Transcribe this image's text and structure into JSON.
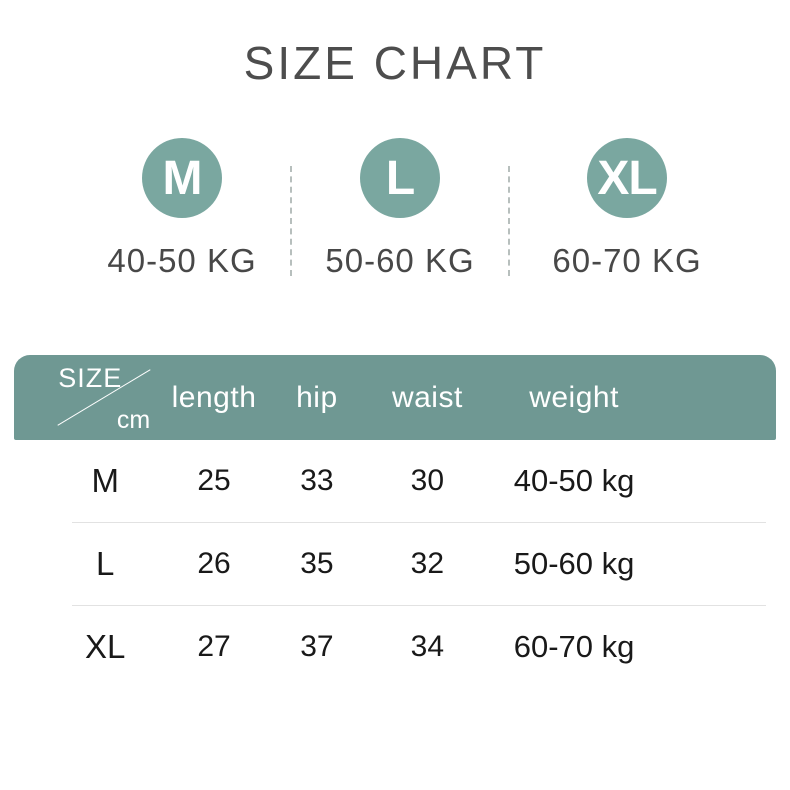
{
  "title": "SIZE CHART",
  "colors": {
    "badge_teal": "#7aa7a0",
    "header_teal": "#6f9893",
    "title_gray": "#4d4d4d",
    "body_text": "#191919"
  },
  "size_legend": [
    {
      "label": "M",
      "weight": "40-50 KG"
    },
    {
      "label": "L",
      "weight": "50-60 KG"
    },
    {
      "label": "XL",
      "weight": "60-70 KG"
    }
  ],
  "table": {
    "corner_top": "SIZE",
    "corner_bottom": "cm",
    "headers": {
      "length": "length",
      "hip": "hip",
      "waist": "waist",
      "weight": "weight"
    },
    "rows": [
      {
        "size": "M",
        "length": "25",
        "hip": "33",
        "waist": "30",
        "weight": "40-50 kg"
      },
      {
        "size": "L",
        "length": "26",
        "hip": "35",
        "waist": "32",
        "weight": "50-60 kg"
      },
      {
        "size": "XL",
        "length": "27",
        "hip": "37",
        "waist": "34",
        "weight": "60-70 kg"
      }
    ]
  },
  "chart_data": {
    "type": "table",
    "title": "SIZE CHART",
    "unit": "cm",
    "columns": [
      "SIZE",
      "length",
      "hip",
      "waist",
      "weight"
    ],
    "rows": [
      [
        "M",
        25,
        33,
        30,
        "40-50 kg"
      ],
      [
        "L",
        26,
        35,
        32,
        "50-60 kg"
      ],
      [
        "XL",
        27,
        37,
        34,
        "60-70 kg"
      ]
    ],
    "legend": [
      {
        "size": "M",
        "weight_range": "40-50 KG"
      },
      {
        "size": "L",
        "weight_range": "50-60 KG"
      },
      {
        "size": "XL",
        "weight_range": "60-70 KG"
      }
    ]
  }
}
